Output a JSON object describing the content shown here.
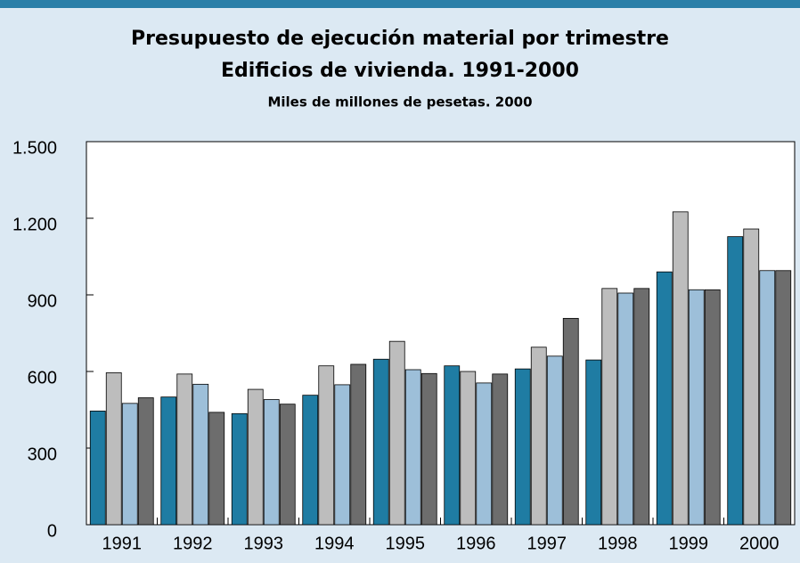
{
  "chart_data": {
    "type": "bar",
    "title": "Presupuesto de ejecución material por trimestre",
    "subtitle": "Edificios de vivienda. 1991-2000",
    "unit_label": "Miles de millones de pesetas. 2000",
    "categories": [
      "1991",
      "1992",
      "1993",
      "1994",
      "1995",
      "1996",
      "1997",
      "1998",
      "1999",
      "2000"
    ],
    "series": [
      {
        "color": "#1f7ca3",
        "values": [
          445,
          500,
          435,
          507,
          648,
          622,
          610,
          645,
          990,
          1128
        ]
      },
      {
        "color": "#bdbdbd",
        "values": [
          595,
          590,
          530,
          622,
          718,
          600,
          695,
          925,
          1225,
          1158
        ]
      },
      {
        "color": "#9dbfd9",
        "values": [
          475,
          550,
          490,
          548,
          607,
          555,
          660,
          907,
          920,
          995
        ]
      },
      {
        "color": "#6d6d6d",
        "values": [
          497,
          440,
          472,
          628,
          592,
          590,
          808,
          925,
          920,
          995
        ]
      }
    ],
    "ylim": [
      0,
      1500
    ],
    "yticks": [
      0,
      300,
      600,
      900,
      {
        "value": 1200,
        "label": "1.200"
      },
      {
        "value": 1500,
        "label": "1.500"
      }
    ]
  }
}
